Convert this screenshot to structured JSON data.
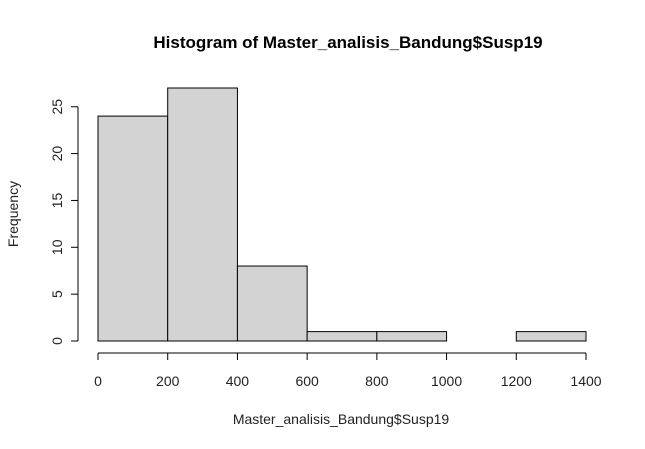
{
  "chart_data": {
    "type": "bar",
    "subtype": "histogram",
    "title": "Histogram of Master_analisis_Bandung$Susp19",
    "xlabel": "Master_analisis_Bandung$Susp19",
    "ylabel": "Frequency",
    "bins": [
      {
        "from": 0,
        "to": 200,
        "value": 24
      },
      {
        "from": 200,
        "to": 400,
        "value": 27
      },
      {
        "from": 400,
        "to": 600,
        "value": 8
      },
      {
        "from": 600,
        "to": 800,
        "value": 1
      },
      {
        "from": 800,
        "to": 1000,
        "value": 1
      },
      {
        "from": 1000,
        "to": 1200,
        "value": 0
      },
      {
        "from": 1200,
        "to": 1400,
        "value": 1
      }
    ],
    "xlim": [
      0,
      1400
    ],
    "ylim": [
      0,
      27
    ],
    "xticks": [
      "0",
      "200",
      "400",
      "600",
      "800",
      "1000",
      "1200",
      "1400"
    ],
    "yticks": [
      "0",
      "5",
      "10",
      "15",
      "20",
      "25"
    ],
    "grid": false,
    "colors": {
      "bar_fill": "#d3d3d3",
      "bar_stroke": "#000000",
      "axis": "#000000"
    }
  }
}
